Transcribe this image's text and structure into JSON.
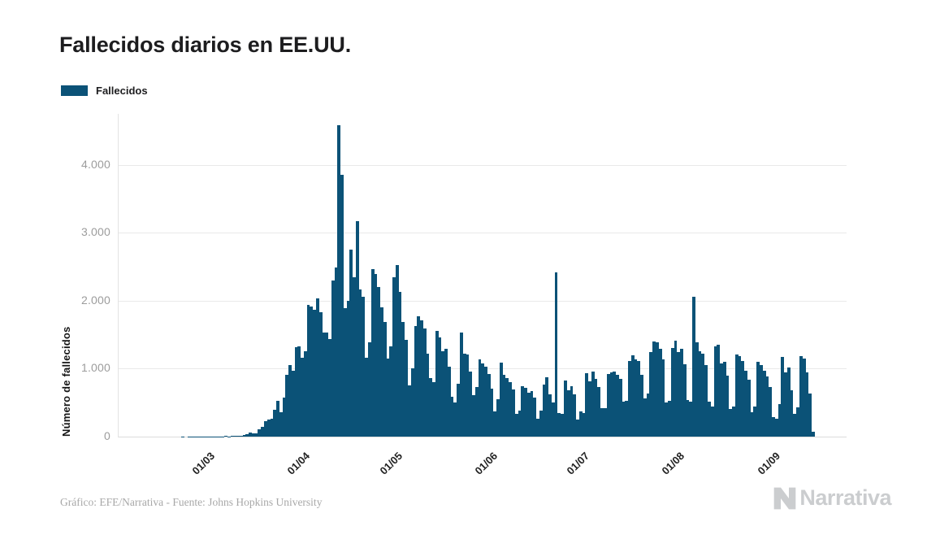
{
  "header": {
    "title": "Fallecidos diarios en EE.UU."
  },
  "legend": {
    "label": "Fallecidos",
    "color": "#0b5277"
  },
  "footer": {
    "credit": "Gráfico: EFE/Narrativa - Fuente: Johns Hopkins University",
    "brand": "Narrativa"
  },
  "chart_data": {
    "type": "bar",
    "title": "Fallecidos diarios en EE.UU.",
    "series_name": "Fallecidos",
    "bar_color": "#0b5277",
    "xlabel": "",
    "ylabel": "Número de fallecidos",
    "ylim": [
      0,
      4754
    ],
    "grid": "horizontal",
    "legend_position": "top-left",
    "y_ticks": [
      {
        "v": 0,
        "label": "0"
      },
      {
        "v": 1000,
        "label": "1.000"
      },
      {
        "v": 2000,
        "label": "2.000"
      },
      {
        "v": 3000,
        "label": "3.000"
      },
      {
        "v": 4000,
        "label": "4.000"
      }
    ],
    "x_ticks": [
      {
        "label": "01/03",
        "day": 24
      },
      {
        "label": "01/04",
        "day": 55
      },
      {
        "label": "01/05",
        "day": 85
      },
      {
        "label": "01/06",
        "day": 116
      },
      {
        "label": "01/07",
        "day": 146
      },
      {
        "label": "01/08",
        "day": 177
      },
      {
        "label": "01/09",
        "day": 208
      }
    ],
    "values": [
      0,
      0,
      0,
      0,
      0,
      0,
      0,
      0,
      0,
      0,
      0,
      0,
      0,
      0,
      0,
      0,
      0,
      0,
      0,
      0,
      1,
      0,
      1,
      1,
      1,
      5,
      3,
      4,
      3,
      3,
      4,
      3,
      4,
      4,
      8,
      3,
      8,
      10,
      11,
      18,
      23,
      41,
      57,
      49,
      46,
      111,
      140,
      225,
      247,
      267,
      400,
      525,
      363,
      573,
      912,
      1049,
      968,
      1321,
      1331,
      1165,
      1255,
      1940,
      1922,
      1873,
      2035,
      1830,
      1528,
      1535,
      1433,
      2299,
      2494,
      4591,
      3857,
      1891,
      1997,
      2751,
      2352,
      3179,
      2172,
      2065,
      1157,
      1384,
      2470,
      2390,
      2201,
      1899,
      1691,
      1154,
      1324,
      2350,
      2528,
      2129,
      1687,
      1422,
      750,
      1008,
      1630,
      1772,
      1715,
      1595,
      1218,
      865,
      808,
      1552,
      1461,
      1263,
      1293,
      1035,
      592,
      500,
      774,
      1535,
      1223,
      1212,
      960,
      605,
      730,
      1134,
      1083,
      1031,
      921,
      709,
      373,
      548,
      1093,
      906,
      868,
      802,
      698,
      331,
      389,
      740,
      720,
      649,
      672,
      570,
      267,
      383,
      771,
      873,
      621,
      504,
      2425,
      352,
      330,
      825,
      684,
      740,
      621,
      254,
      376,
      352,
      935,
      812,
      961,
      849,
      726,
      421,
      414,
      920,
      941,
      963,
      908,
      853,
      516,
      523,
      1113,
      1195,
      1140,
      1110,
      909,
      564,
      636,
      1240,
      1403,
      1387,
      1290,
      1132,
      501,
      532,
      1302,
      1413,
      1244,
      1290,
      1064,
      539,
      518,
      2064,
      1393,
      1263,
      1226,
      1050,
      510,
      445,
      1324,
      1357,
      1078,
      1097,
      903,
      407,
      447,
      1205,
      1183,
      1117,
      965,
      842,
      363,
      447,
      1096,
      1057,
      971,
      888,
      728,
      285,
      267,
      477,
      1171,
      944,
      1014,
      686,
      332,
      426,
      1184,
      1150,
      941,
      640,
      67
    ]
  }
}
